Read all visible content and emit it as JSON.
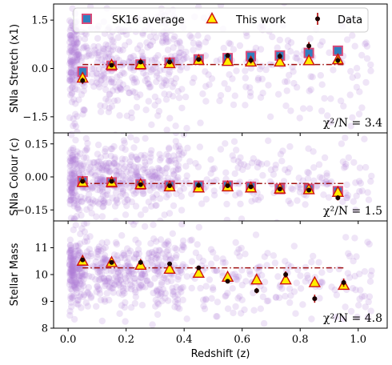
{
  "chart_data": {
    "type": "scatter",
    "xlabel": "Redshift (z)",
    "xlim": [
      -0.05,
      1.1
    ],
    "xticks": [
      "0.0",
      "0.2",
      "0.4",
      "0.6",
      "0.8",
      "1.0"
    ],
    "legend": {
      "placement": "top",
      "entries": [
        "SK16 average",
        "This work",
        "Data"
      ]
    },
    "colors": {
      "scatter": "#b07cd8",
      "sk16_fill": "#2f7fbf",
      "sk16_edge": "#d84a7a",
      "thiswork_fill": "#ffee00",
      "thiswork_edge": "#cc1111",
      "data_point": "#1a0000",
      "data_err": "#b00000",
      "fitline": "#a01010"
    },
    "panels": [
      {
        "ylabel": "SNIa Stretch (x1)",
        "ylim": [
          -2.0,
          2.0
        ],
        "yticks": [
          "−1.5",
          "0.0",
          "1.5"
        ],
        "ytick_values": [
          -1.5,
          0.0,
          1.5
        ],
        "chi2": "χ²/N = 3.4",
        "fit_line": {
          "x": [
            0.05,
            0.95
          ],
          "y": 0.12
        },
        "sk16": {
          "x": [
            0.05,
            0.15,
            0.25,
            0.35,
            0.45,
            0.55,
            0.63,
            0.73,
            0.83,
            0.93
          ],
          "y": [
            -0.1,
            0.08,
            0.12,
            0.18,
            0.28,
            0.32,
            0.38,
            0.4,
            0.48,
            0.55
          ]
        },
        "this_work": {
          "x": [
            0.05,
            0.15,
            0.25,
            0.35,
            0.45,
            0.55,
            0.63,
            0.73,
            0.83,
            0.93
          ],
          "y": [
            -0.3,
            0.1,
            0.12,
            0.15,
            0.25,
            0.22,
            0.2,
            0.2,
            0.24,
            0.27
          ]
        },
        "data": {
          "x": [
            0.05,
            0.15,
            0.25,
            0.35,
            0.45,
            0.55,
            0.63,
            0.73,
            0.83,
            0.93
          ],
          "y": [
            -0.38,
            0.1,
            0.2,
            0.2,
            0.28,
            0.4,
            0.25,
            0.38,
            0.7,
            0.25
          ],
          "err": [
            0.1,
            0.06,
            0.06,
            0.06,
            0.07,
            0.08,
            0.1,
            0.1,
            0.12,
            0.12
          ]
        }
      },
      {
        "ylabel": "SNIa Colour (c)",
        "ylim": [
          -0.2,
          0.2
        ],
        "yticks": [
          "−0.15",
          "0.00",
          "0.15"
        ],
        "ytick_values": [
          -0.15,
          0.0,
          0.15
        ],
        "chi2": "χ²/N = 1.5",
        "fit_line": {
          "x": [
            0.05,
            0.95
          ],
          "y": -0.03
        },
        "sk16": {
          "x": [
            0.05,
            0.15,
            0.25,
            0.35,
            0.45,
            0.55,
            0.63,
            0.73,
            0.83,
            0.93
          ],
          "y": [
            -0.02,
            -0.025,
            -0.035,
            -0.04,
            -0.04,
            -0.04,
            -0.045,
            -0.055,
            -0.055,
            -0.065
          ]
        },
        "this_work": {
          "x": [
            0.05,
            0.15,
            0.25,
            0.35,
            0.45,
            0.55,
            0.63,
            0.73,
            0.83,
            0.93
          ],
          "y": [
            -0.025,
            -0.025,
            -0.035,
            -0.045,
            -0.05,
            -0.045,
            -0.05,
            -0.055,
            -0.058,
            -0.07
          ]
        },
        "data": {
          "x": [
            0.05,
            0.15,
            0.25,
            0.35,
            0.45,
            0.55,
            0.63,
            0.73,
            0.83,
            0.93
          ],
          "y": [
            -0.02,
            -0.02,
            -0.035,
            -0.04,
            -0.038,
            -0.04,
            -0.045,
            -0.055,
            -0.06,
            -0.095
          ],
          "err": [
            0.008,
            0.006,
            0.006,
            0.006,
            0.006,
            0.006,
            0.008,
            0.01,
            0.01,
            0.012
          ]
        }
      },
      {
        "ylabel": "Stellar Mass",
        "ylim": [
          8.0,
          12.0
        ],
        "yticks": [
          "8",
          "9",
          "10",
          "11"
        ],
        "ytick_values": [
          8,
          9,
          10,
          11
        ],
        "chi2": "χ²/N = 4.8",
        "fit_line": {
          "x": [
            0.05,
            0.95
          ],
          "y": 10.25
        },
        "this_work": {
          "x": [
            0.05,
            0.15,
            0.25,
            0.35,
            0.45,
            0.55,
            0.65,
            0.75,
            0.85,
            0.95
          ],
          "y": [
            10.5,
            10.45,
            10.35,
            10.2,
            10.05,
            9.9,
            9.8,
            9.8,
            9.7,
            9.6
          ]
        },
        "data": {
          "x": [
            0.05,
            0.15,
            0.25,
            0.35,
            0.45,
            0.55,
            0.65,
            0.75,
            0.85,
            0.95
          ],
          "y": [
            10.55,
            10.45,
            10.45,
            10.4,
            10.25,
            9.75,
            9.4,
            10.0,
            9.1,
            9.7
          ],
          "err": [
            0.05,
            0.05,
            0.05,
            0.05,
            0.06,
            0.08,
            0.1,
            0.12,
            0.15,
            0.15
          ]
        }
      }
    ]
  }
}
